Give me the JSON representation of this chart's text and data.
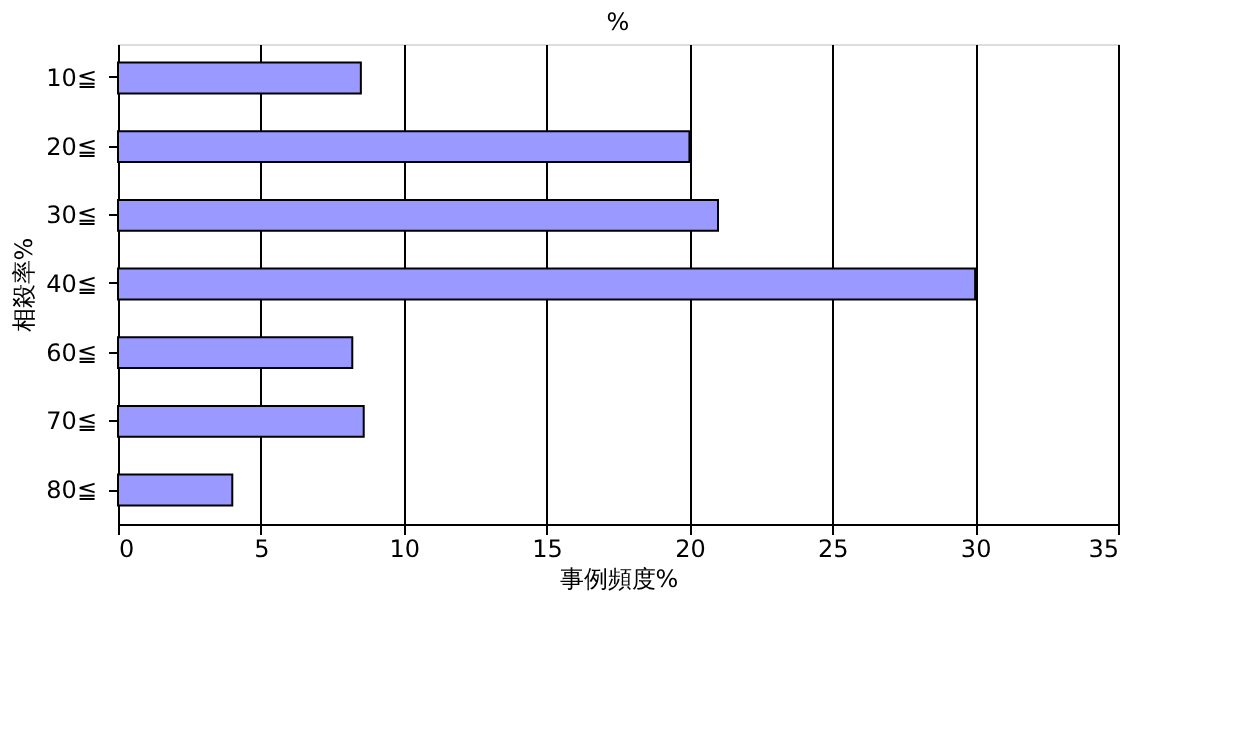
{
  "chart_data": {
    "type": "bar",
    "orientation": "horizontal",
    "title": "%",
    "xlabel": "事例頻度%",
    "ylabel": "相殺率%",
    "categories": [
      "10≦",
      "20≦",
      "30≦",
      "40≦",
      "60≦",
      "70≦",
      "80≦"
    ],
    "values": [
      8.5,
      20,
      21,
      30,
      8.2,
      8.6,
      4
    ],
    "color": "#9999ff",
    "xlim": [
      0,
      35
    ],
    "xticks": [
      0,
      5,
      10,
      15,
      20,
      25,
      30,
      35
    ],
    "grid": "x"
  }
}
